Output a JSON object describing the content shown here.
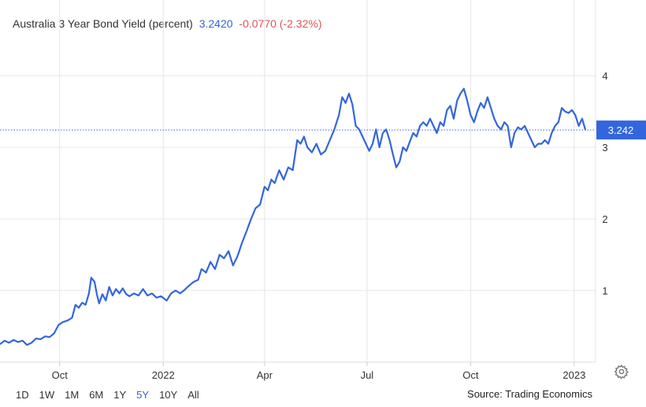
{
  "header": {
    "name": "Australia 3 Year Bond Yield (percent)",
    "last": "3.2420",
    "change": "-0.0770 (-2.32%)"
  },
  "price_tag": "3.242",
  "ranges": [
    "1D",
    "1W",
    "1M",
    "6M",
    "1Y",
    "5Y",
    "10Y",
    "All"
  ],
  "active_range": "5Y",
  "source": "Source: Trading Economics",
  "colors": {
    "line": "#3366dd",
    "change_negative": "#e05555",
    "tag": "#3366dd",
    "grid": "#e6e6e6"
  },
  "icons": {
    "settings": "gear-icon"
  },
  "chart_data": {
    "type": "line",
    "title": "Australia 3 Year Bond Yield (percent)",
    "xlabel": "",
    "ylabel": "",
    "ylim": [
      0.0,
      4.2
    ],
    "yticks": [
      1,
      2,
      3,
      4
    ],
    "last_value": 3.242,
    "grid": true,
    "x_ticks": [
      {
        "label": "Oct",
        "date": "2021-10-01"
      },
      {
        "label": "2022",
        "date": "2022-01-01"
      },
      {
        "label": "Apr",
        "date": "2022-04-01"
      },
      {
        "label": "Jul",
        "date": "2022-07-01"
      },
      {
        "label": "Oct",
        "date": "2022-10-01"
      },
      {
        "label": "2023",
        "date": "2023-01-01"
      }
    ],
    "series": [
      {
        "points": [
          [
            "2021-08-09",
            0.25
          ],
          [
            "2021-08-13",
            0.3
          ],
          [
            "2021-08-17",
            0.27
          ],
          [
            "2021-08-21",
            0.31
          ],
          [
            "2021-08-25",
            0.28
          ],
          [
            "2021-08-29",
            0.3
          ],
          [
            "2021-09-02",
            0.24
          ],
          [
            "2021-09-06",
            0.27
          ],
          [
            "2021-09-10",
            0.33
          ],
          [
            "2021-09-14",
            0.32
          ],
          [
            "2021-09-18",
            0.36
          ],
          [
            "2021-09-22",
            0.35
          ],
          [
            "2021-09-26",
            0.4
          ],
          [
            "2021-09-30",
            0.52
          ],
          [
            "2021-10-04",
            0.56
          ],
          [
            "2021-10-08",
            0.58
          ],
          [
            "2021-10-12",
            0.62
          ],
          [
            "2021-10-15",
            0.8
          ],
          [
            "2021-10-18",
            0.76
          ],
          [
            "2021-10-21",
            0.83
          ],
          [
            "2021-10-24",
            0.8
          ],
          [
            "2021-10-27",
            0.96
          ],
          [
            "2021-10-29",
            1.18
          ],
          [
            "2021-11-01",
            1.12
          ],
          [
            "2021-11-03",
            0.95
          ],
          [
            "2021-11-05",
            0.82
          ],
          [
            "2021-11-08",
            0.95
          ],
          [
            "2021-11-11",
            0.86
          ],
          [
            "2021-11-14",
            1.05
          ],
          [
            "2021-11-17",
            0.93
          ],
          [
            "2021-11-20",
            1.02
          ],
          [
            "2021-11-23",
            0.96
          ],
          [
            "2021-11-26",
            1.03
          ],
          [
            "2021-11-29",
            0.95
          ],
          [
            "2021-12-02",
            0.92
          ],
          [
            "2021-12-06",
            0.96
          ],
          [
            "2021-12-10",
            0.93
          ],
          [
            "2021-12-14",
            1.02
          ],
          [
            "2021-12-18",
            0.93
          ],
          [
            "2021-12-22",
            0.96
          ],
          [
            "2021-12-26",
            0.9
          ],
          [
            "2021-12-30",
            0.92
          ],
          [
            "2022-01-04",
            0.86
          ],
          [
            "2022-01-08",
            0.96
          ],
          [
            "2022-01-12",
            1.0
          ],
          [
            "2022-01-16",
            0.96
          ],
          [
            "2022-01-20",
            1.01
          ],
          [
            "2022-01-24",
            1.07
          ],
          [
            "2022-01-28",
            1.12
          ],
          [
            "2022-02-01",
            1.15
          ],
          [
            "2022-02-04",
            1.3
          ],
          [
            "2022-02-08",
            1.25
          ],
          [
            "2022-02-12",
            1.4
          ],
          [
            "2022-02-16",
            1.3
          ],
          [
            "2022-02-20",
            1.5
          ],
          [
            "2022-02-24",
            1.45
          ],
          [
            "2022-02-28",
            1.55
          ],
          [
            "2022-03-04",
            1.35
          ],
          [
            "2022-03-08",
            1.48
          ],
          [
            "2022-03-12",
            1.67
          ],
          [
            "2022-03-16",
            1.83
          ],
          [
            "2022-03-20",
            2.0
          ],
          [
            "2022-03-24",
            2.15
          ],
          [
            "2022-03-28",
            2.2
          ],
          [
            "2022-04-01",
            2.45
          ],
          [
            "2022-04-04",
            2.4
          ],
          [
            "2022-04-07",
            2.55
          ],
          [
            "2022-04-10",
            2.5
          ],
          [
            "2022-04-14",
            2.68
          ],
          [
            "2022-04-18",
            2.55
          ],
          [
            "2022-04-22",
            2.72
          ],
          [
            "2022-04-26",
            2.68
          ],
          [
            "2022-04-30",
            3.1
          ],
          [
            "2022-05-03",
            3.05
          ],
          [
            "2022-05-06",
            3.15
          ],
          [
            "2022-05-09",
            3.0
          ],
          [
            "2022-05-13",
            2.93
          ],
          [
            "2022-05-17",
            3.05
          ],
          [
            "2022-05-21",
            2.9
          ],
          [
            "2022-05-25",
            2.95
          ],
          [
            "2022-05-29",
            3.1
          ],
          [
            "2022-06-02",
            3.25
          ],
          [
            "2022-06-06",
            3.45
          ],
          [
            "2022-06-09",
            3.7
          ],
          [
            "2022-06-12",
            3.62
          ],
          [
            "2022-06-15",
            3.75
          ],
          [
            "2022-06-18",
            3.6
          ],
          [
            "2022-06-21",
            3.3
          ],
          [
            "2022-06-24",
            3.25
          ],
          [
            "2022-06-27",
            3.15
          ],
          [
            "2022-06-30",
            3.05
          ],
          [
            "2022-07-03",
            2.95
          ],
          [
            "2022-07-06",
            3.05
          ],
          [
            "2022-07-09",
            3.25
          ],
          [
            "2022-07-12",
            3.0
          ],
          [
            "2022-07-15",
            3.2
          ],
          [
            "2022-07-18",
            3.25
          ],
          [
            "2022-07-21",
            3.1
          ],
          [
            "2022-07-24",
            2.9
          ],
          [
            "2022-07-27",
            2.72
          ],
          [
            "2022-07-30",
            2.8
          ],
          [
            "2022-08-02",
            3.0
          ],
          [
            "2022-08-05",
            2.95
          ],
          [
            "2022-08-08",
            3.08
          ],
          [
            "2022-08-11",
            3.2
          ],
          [
            "2022-08-14",
            3.15
          ],
          [
            "2022-08-17",
            3.3
          ],
          [
            "2022-08-20",
            3.35
          ],
          [
            "2022-08-23",
            3.3
          ],
          [
            "2022-08-26",
            3.4
          ],
          [
            "2022-08-29",
            3.3
          ],
          [
            "2022-09-01",
            3.2
          ],
          [
            "2022-09-04",
            3.35
          ],
          [
            "2022-09-07",
            3.3
          ],
          [
            "2022-09-10",
            3.52
          ],
          [
            "2022-09-13",
            3.58
          ],
          [
            "2022-09-16",
            3.4
          ],
          [
            "2022-09-19",
            3.65
          ],
          [
            "2022-09-22",
            3.75
          ],
          [
            "2022-09-25",
            3.82
          ],
          [
            "2022-09-28",
            3.65
          ],
          [
            "2022-10-01",
            3.45
          ],
          [
            "2022-10-04",
            3.35
          ],
          [
            "2022-10-07",
            3.5
          ],
          [
            "2022-10-10",
            3.62
          ],
          [
            "2022-10-13",
            3.55
          ],
          [
            "2022-10-16",
            3.7
          ],
          [
            "2022-10-19",
            3.55
          ],
          [
            "2022-10-22",
            3.4
          ],
          [
            "2022-10-25",
            3.3
          ],
          [
            "2022-10-28",
            3.25
          ],
          [
            "2022-10-31",
            3.35
          ],
          [
            "2022-11-03",
            3.3
          ],
          [
            "2022-11-06",
            3.0
          ],
          [
            "2022-11-09",
            3.2
          ],
          [
            "2022-11-12",
            3.28
          ],
          [
            "2022-11-15",
            3.25
          ],
          [
            "2022-11-18",
            3.3
          ],
          [
            "2022-11-21",
            3.2
          ],
          [
            "2022-11-24",
            3.1
          ],
          [
            "2022-11-27",
            3.0
          ],
          [
            "2022-11-30",
            3.05
          ],
          [
            "2022-12-03",
            3.05
          ],
          [
            "2022-12-06",
            3.1
          ],
          [
            "2022-12-09",
            3.05
          ],
          [
            "2022-12-12",
            3.2
          ],
          [
            "2022-12-15",
            3.3
          ],
          [
            "2022-12-18",
            3.35
          ],
          [
            "2022-12-21",
            3.55
          ],
          [
            "2022-12-24",
            3.5
          ],
          [
            "2022-12-27",
            3.48
          ],
          [
            "2022-12-30",
            3.52
          ],
          [
            "2023-01-02",
            3.45
          ],
          [
            "2023-01-05",
            3.3
          ],
          [
            "2023-01-08",
            3.4
          ],
          [
            "2023-01-11",
            3.242
          ]
        ]
      }
    ]
  }
}
